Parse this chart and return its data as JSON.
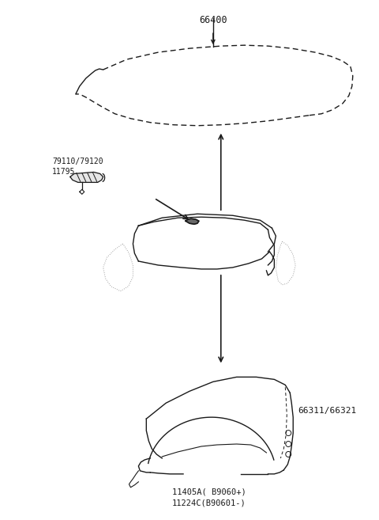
{
  "bg_color": "#ffffff",
  "labels": {
    "hood": "66400",
    "hinge": "79110/79120",
    "bolt": "11795",
    "fender": "66311/66321",
    "fender_sub1": "11405A( B9060+)",
    "fender_sub2": "11224C(B90601-)"
  },
  "fig_width": 4.8,
  "fig_height": 6.57,
  "dpi": 100
}
